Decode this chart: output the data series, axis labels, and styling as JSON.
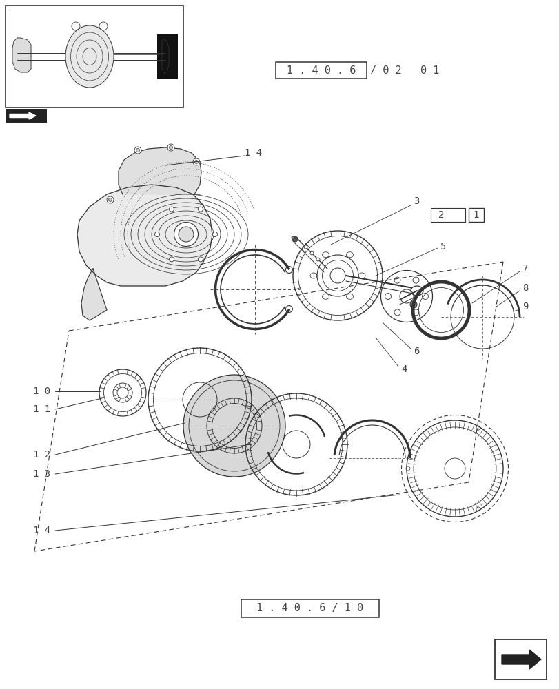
{
  "bg_color": "#ffffff",
  "title_box_text": "1 . 4 0 . 6",
  "title_suffix": "/ 0 2   0 1",
  "bottom_box_text": "1 . 4 0 . 6 / 1 0",
  "figsize": [
    8.12,
    10.0
  ],
  "dpi": 100,
  "line_color": "#333333",
  "label_color": "#444444"
}
